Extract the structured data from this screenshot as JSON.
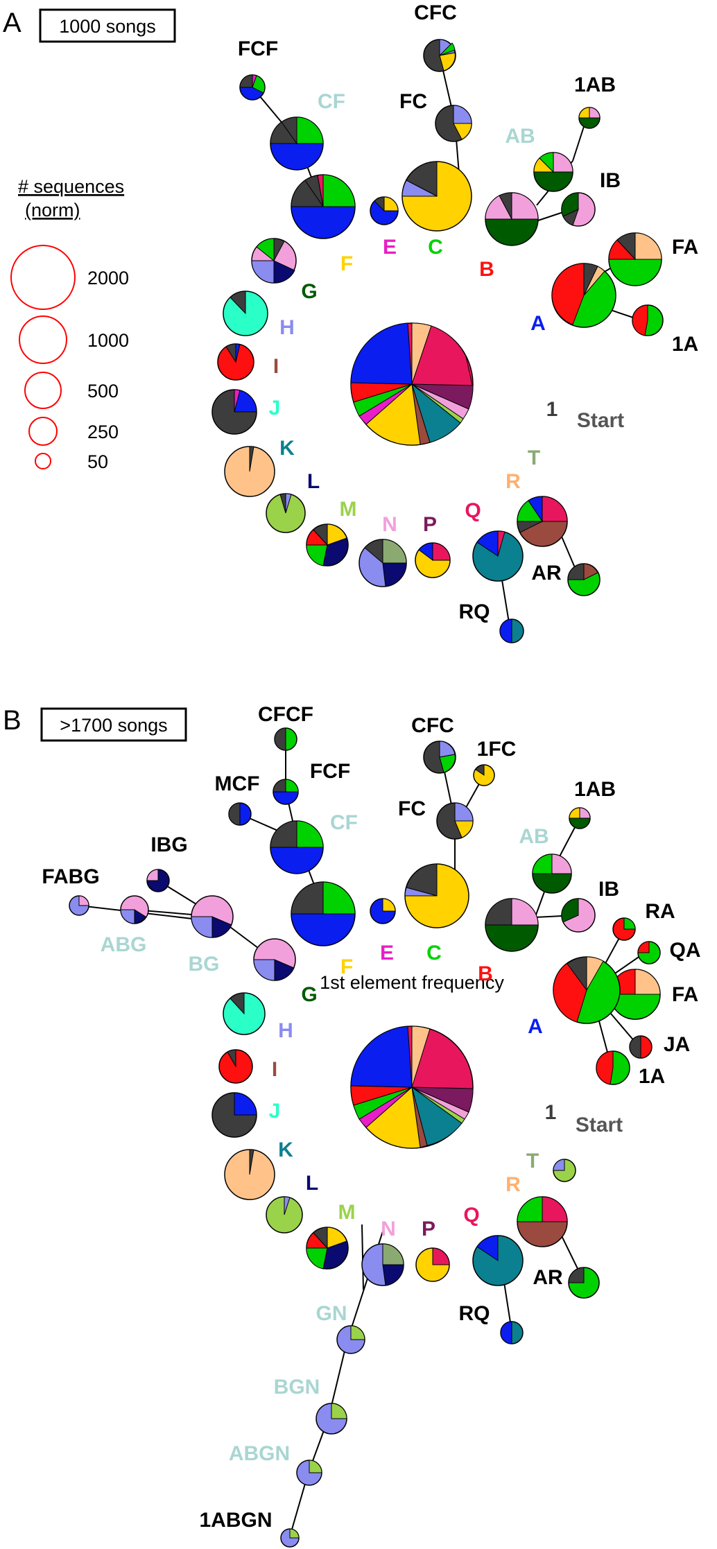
{
  "panels": [
    {
      "letter": "A",
      "box_label": "1000 songs",
      "center_label": "",
      "colors": {
        "dark": "#3d3d3d",
        "magenta": "#e8175d",
        "purple": "#7b1a5e",
        "olive": "#8aaa72",
        "peach": "#ffc38a",
        "green": "#00d200",
        "red": "#ff1010",
        "blue": "#0a1ef0",
        "yellow": "#ffd200",
        "pink": "#f2a0dc",
        "dkgreen": "#005a00",
        "brown": "#9b4a3f",
        "teal": "#0b8090",
        "lavender": "#8a8cf0",
        "aqua": "#2affc8",
        "lime": "#9ad24a",
        "navy": "#0a0a70",
        "ltteal": "#a9d6d2",
        "orange": "#ffb070"
      }
    },
    {
      "letter": "B",
      "box_label": ">1700 songs",
      "center_label": "1st element frequency"
    }
  ],
  "legend": {
    "title_line1": "# sequences",
    "title_line2": "(norm)",
    "entries": [
      "2000",
      "1000",
      "500",
      "250",
      "50"
    ],
    "circle_color": "#ff0000"
  },
  "labels_A": [
    {
      "text": "CFC",
      "color": "#000000"
    },
    {
      "text": "FCF",
      "color": "#000000"
    },
    {
      "text": "CF",
      "color": "#a9d6d2"
    },
    {
      "text": "FC",
      "color": "#000000"
    },
    {
      "text": "1AB",
      "color": "#000000"
    },
    {
      "text": "AB",
      "color": "#a9d6d2"
    },
    {
      "text": "IB",
      "color": "#000000"
    },
    {
      "text": "FA",
      "color": "#000000"
    },
    {
      "text": "1A",
      "color": "#000000"
    },
    {
      "text": "A",
      "color": "#0a1ef0"
    },
    {
      "text": "B",
      "color": "#ff1010"
    },
    {
      "text": "C",
      "color": "#00d200"
    },
    {
      "text": "E",
      "color": "#e81ec8"
    },
    {
      "text": "F",
      "color": "#ffd200"
    },
    {
      "text": "G",
      "color": "#005a00"
    },
    {
      "text": "H",
      "color": "#8a8cf0"
    },
    {
      "text": "I",
      "color": "#9b4a3f"
    },
    {
      "text": "J",
      "color": "#2affc8"
    },
    {
      "text": "K",
      "color": "#0b8090"
    },
    {
      "text": "L",
      "color": "#0a0a70"
    },
    {
      "text": "M",
      "color": "#9ad24a"
    },
    {
      "text": "N",
      "color": "#f2a0dc"
    },
    {
      "text": "P",
      "color": "#7b1a5e"
    },
    {
      "text": "Q",
      "color": "#e8175d"
    },
    {
      "text": "R",
      "color": "#ffb070"
    },
    {
      "text": "T",
      "color": "#8aaa72"
    },
    {
      "text": "1",
      "color": "#3d3d3d"
    },
    {
      "text": "Start",
      "color": "#555555"
    },
    {
      "text": "AR",
      "color": "#000000"
    },
    {
      "text": "RQ",
      "color": "#000000"
    }
  ],
  "labels_B": [
    {
      "text": "CFCF",
      "color": "#000000"
    },
    {
      "text": "FCF",
      "color": "#000000"
    },
    {
      "text": "MCF",
      "color": "#000000"
    },
    {
      "text": "CF",
      "color": "#a9d6d2"
    },
    {
      "text": "CFC",
      "color": "#000000"
    },
    {
      "text": "1FC",
      "color": "#000000"
    },
    {
      "text": "FC",
      "color": "#000000"
    },
    {
      "text": "1AB",
      "color": "#000000"
    },
    {
      "text": "AB",
      "color": "#a9d6d2"
    },
    {
      "text": "IB",
      "color": "#000000"
    },
    {
      "text": "RA",
      "color": "#000000"
    },
    {
      "text": "QA",
      "color": "#000000"
    },
    {
      "text": "FA",
      "color": "#000000"
    },
    {
      "text": "JA",
      "color": "#000000"
    },
    {
      "text": "1A",
      "color": "#000000"
    },
    {
      "text": "A",
      "color": "#0a1ef0"
    },
    {
      "text": "B",
      "color": "#ff1010"
    },
    {
      "text": "C",
      "color": "#00d200"
    },
    {
      "text": "E",
      "color": "#e81ec8"
    },
    {
      "text": "F",
      "color": "#ffd200"
    },
    {
      "text": "G",
      "color": "#005a00"
    },
    {
      "text": "H",
      "color": "#8a8cf0"
    },
    {
      "text": "I",
      "color": "#9b4a3f"
    },
    {
      "text": "J",
      "color": "#2affc8"
    },
    {
      "text": "K",
      "color": "#0b8090"
    },
    {
      "text": "L",
      "color": "#0a0a70"
    },
    {
      "text": "M",
      "color": "#9ad24a"
    },
    {
      "text": "N",
      "color": "#f2a0dc"
    },
    {
      "text": "P",
      "color": "#7b1a5e"
    },
    {
      "text": "Q",
      "color": "#e8175d"
    },
    {
      "text": "R",
      "color": "#ffb070"
    },
    {
      "text": "T",
      "color": "#8aaa72"
    },
    {
      "text": "1",
      "color": "#3d3d3d"
    },
    {
      "text": "Start",
      "color": "#555555"
    },
    {
      "text": "AR",
      "color": "#000000"
    },
    {
      "text": "RQ",
      "color": "#000000"
    },
    {
      "text": "IBG",
      "color": "#000000"
    },
    {
      "text": "FABG",
      "color": "#000000"
    },
    {
      "text": "ABG",
      "color": "#a9d6d2"
    },
    {
      "text": "BG",
      "color": "#a9d6d2"
    },
    {
      "text": "GN",
      "color": "#a9d6d2"
    },
    {
      "text": "BGN",
      "color": "#a9d6d2"
    },
    {
      "text": "ABGN",
      "color": "#a9d6d2"
    },
    {
      "text": "1ABGN",
      "color": "#000000"
    }
  ]
}
